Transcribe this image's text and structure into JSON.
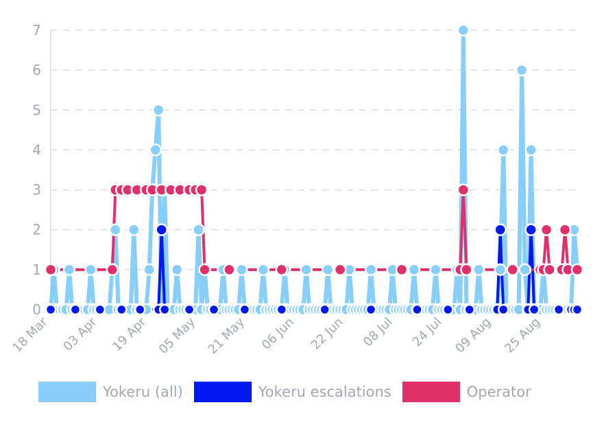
{
  "chart_data": {
    "type": "line",
    "y_ticks": [
      "0",
      "1",
      "2",
      "3",
      "4",
      "5",
      "6",
      "7"
    ],
    "ylim": [
      0,
      7
    ],
    "x_ticks": [
      "18 Mar",
      "03 Apr",
      "19 Apr",
      "05 May",
      "21 May",
      "06 Jun",
      "22 Jun",
      "08 Jul",
      "24 Jul",
      "09 Aug",
      "25 Aug"
    ],
    "x_start": "2024-03-18",
    "x_end": "2024-09-05",
    "grid": true,
    "legend_position": "bottom",
    "series": [
      {
        "name": "Yokeru (all)",
        "color": "#87cefa",
        "points": [
          [
            "2024-03-18",
            0
          ],
          [
            "2024-03-19",
            1
          ],
          [
            "2024-03-20",
            0
          ],
          [
            "2024-03-21",
            0
          ],
          [
            "2024-03-22",
            0
          ],
          [
            "2024-03-23",
            0
          ],
          [
            "2024-03-24",
            1
          ],
          [
            "2024-03-25",
            0
          ],
          [
            "2024-03-26",
            0
          ],
          [
            "2024-03-27",
            0
          ],
          [
            "2024-03-28",
            0
          ],
          [
            "2024-03-29",
            0
          ],
          [
            "2024-03-30",
            0
          ],
          [
            "2024-03-31",
            1
          ],
          [
            "2024-04-01",
            0
          ],
          [
            "2024-04-02",
            0
          ],
          [
            "2024-04-03",
            0
          ],
          [
            "2024-04-04",
            0
          ],
          [
            "2024-04-05",
            0
          ],
          [
            "2024-04-06",
            0
          ],
          [
            "2024-04-07",
            1
          ],
          [
            "2024-04-08",
            2
          ],
          [
            "2024-04-09",
            0
          ],
          [
            "2024-04-10",
            0
          ],
          [
            "2024-04-11",
            0
          ],
          [
            "2024-04-12",
            0
          ],
          [
            "2024-04-13",
            0
          ],
          [
            "2024-04-14",
            2
          ],
          [
            "2024-04-15",
            0
          ],
          [
            "2024-04-16",
            0
          ],
          [
            "2024-04-17",
            0
          ],
          [
            "2024-04-18",
            0
          ],
          [
            "2024-04-19",
            1
          ],
          [
            "2024-04-20",
            3
          ],
          [
            "2024-04-21",
            4
          ],
          [
            "2024-04-22",
            5
          ],
          [
            "2024-04-23",
            0
          ],
          [
            "2024-04-24",
            3
          ],
          [
            "2024-04-25",
            0
          ],
          [
            "2024-04-26",
            0
          ],
          [
            "2024-04-27",
            0
          ],
          [
            "2024-04-28",
            1
          ],
          [
            "2024-04-29",
            0
          ],
          [
            "2024-04-30",
            0
          ],
          [
            "2024-05-01",
            0
          ],
          [
            "2024-05-02",
            0
          ],
          [
            "2024-05-03",
            0
          ],
          [
            "2024-05-04",
            0
          ],
          [
            "2024-05-05",
            2
          ],
          [
            "2024-05-06",
            0
          ],
          [
            "2024-05-07",
            1
          ],
          [
            "2024-05-08",
            0
          ],
          [
            "2024-05-09",
            0
          ],
          [
            "2024-05-10",
            0
          ],
          [
            "2024-05-11",
            0
          ],
          [
            "2024-05-12",
            0
          ],
          [
            "2024-05-13",
            1
          ],
          [
            "2024-05-14",
            0
          ],
          [
            "2024-05-15",
            0
          ],
          [
            "2024-05-16",
            0
          ],
          [
            "2024-05-17",
            0
          ],
          [
            "2024-05-18",
            0
          ],
          [
            "2024-05-19",
            1
          ],
          [
            "2024-05-20",
            0
          ],
          [
            "2024-05-21",
            0
          ],
          [
            "2024-05-22",
            0
          ],
          [
            "2024-05-23",
            0
          ],
          [
            "2024-05-24",
            0
          ],
          [
            "2024-05-25",
            0
          ],
          [
            "2024-05-26",
            1
          ],
          [
            "2024-05-27",
            0
          ],
          [
            "2024-05-28",
            0
          ],
          [
            "2024-05-29",
            0
          ],
          [
            "2024-05-30",
            0
          ],
          [
            "2024-05-31",
            0
          ],
          [
            "2024-06-01",
            0
          ],
          [
            "2024-06-02",
            1
          ],
          [
            "2024-06-03",
            0
          ],
          [
            "2024-06-04",
            0
          ],
          [
            "2024-06-05",
            0
          ],
          [
            "2024-06-06",
            0
          ],
          [
            "2024-06-07",
            0
          ],
          [
            "2024-06-08",
            0
          ],
          [
            "2024-06-09",
            1
          ],
          [
            "2024-06-10",
            0
          ],
          [
            "2024-06-11",
            0
          ],
          [
            "2024-06-12",
            0
          ],
          [
            "2024-06-13",
            0
          ],
          [
            "2024-06-14",
            0
          ],
          [
            "2024-06-15",
            0
          ],
          [
            "2024-06-16",
            1
          ],
          [
            "2024-06-17",
            0
          ],
          [
            "2024-06-18",
            0
          ],
          [
            "2024-06-19",
            0
          ],
          [
            "2024-06-20",
            0
          ],
          [
            "2024-06-21",
            0
          ],
          [
            "2024-06-22",
            0
          ],
          [
            "2024-06-23",
            1
          ],
          [
            "2024-06-24",
            0
          ],
          [
            "2024-06-25",
            0
          ],
          [
            "2024-06-26",
            0
          ],
          [
            "2024-06-27",
            0
          ],
          [
            "2024-06-28",
            0
          ],
          [
            "2024-06-29",
            0
          ],
          [
            "2024-06-30",
            1
          ],
          [
            "2024-07-01",
            0
          ],
          [
            "2024-07-02",
            0
          ],
          [
            "2024-07-03",
            0
          ],
          [
            "2024-07-04",
            0
          ],
          [
            "2024-07-05",
            0
          ],
          [
            "2024-07-06",
            0
          ],
          [
            "2024-07-07",
            1
          ],
          [
            "2024-07-08",
            0
          ],
          [
            "2024-07-09",
            0
          ],
          [
            "2024-07-10",
            0
          ],
          [
            "2024-07-11",
            0
          ],
          [
            "2024-07-12",
            0
          ],
          [
            "2024-07-13",
            0
          ],
          [
            "2024-07-14",
            1
          ],
          [
            "2024-07-15",
            0
          ],
          [
            "2024-07-16",
            0
          ],
          [
            "2024-07-17",
            0
          ],
          [
            "2024-07-18",
            0
          ],
          [
            "2024-07-19",
            0
          ],
          [
            "2024-07-20",
            0
          ],
          [
            "2024-07-21",
            1
          ],
          [
            "2024-07-22",
            0
          ],
          [
            "2024-07-23",
            0
          ],
          [
            "2024-07-24",
            0
          ],
          [
            "2024-07-25",
            0
          ],
          [
            "2024-07-26",
            0
          ],
          [
            "2024-07-27",
            0
          ],
          [
            "2024-07-28",
            1
          ],
          [
            "2024-07-29",
            0
          ],
          [
            "2024-07-30",
            7
          ],
          [
            "2024-07-31",
            0
          ],
          [
            "2024-08-01",
            0
          ],
          [
            "2024-08-02",
            0
          ],
          [
            "2024-08-03",
            0
          ],
          [
            "2024-08-04",
            1
          ],
          [
            "2024-08-05",
            0
          ],
          [
            "2024-08-06",
            0
          ],
          [
            "2024-08-07",
            0
          ],
          [
            "2024-08-08",
            0
          ],
          [
            "2024-08-09",
            0
          ],
          [
            "2024-08-10",
            0
          ],
          [
            "2024-08-11",
            1
          ],
          [
            "2024-08-12",
            4
          ],
          [
            "2024-08-13",
            0
          ],
          [
            "2024-08-14",
            0
          ],
          [
            "2024-08-15",
            0
          ],
          [
            "2024-08-16",
            0
          ],
          [
            "2024-08-17",
            0
          ],
          [
            "2024-08-18",
            6
          ],
          [
            "2024-08-19",
            1
          ],
          [
            "2024-08-20",
            0
          ],
          [
            "2024-08-21",
            4
          ],
          [
            "2024-08-22",
            0
          ],
          [
            "2024-08-23",
            0
          ],
          [
            "2024-08-24",
            0
          ],
          [
            "2024-08-25",
            1
          ],
          [
            "2024-08-26",
            0
          ],
          [
            "2024-08-27",
            0
          ],
          [
            "2024-08-28",
            0
          ],
          [
            "2024-08-29",
            0
          ],
          [
            "2024-08-30",
            0
          ],
          [
            "2024-08-31",
            0
          ],
          [
            "2024-09-01",
            0
          ],
          [
            "2024-09-02",
            0
          ],
          [
            "2024-09-03",
            0
          ],
          [
            "2024-09-04",
            2
          ],
          [
            "2024-09-05",
            1
          ]
        ]
      },
      {
        "name": "Yokeru escalations",
        "color": "#0019f0",
        "points": [
          [
            "2024-03-18",
            0
          ],
          [
            "2024-03-26",
            0
          ],
          [
            "2024-04-03",
            0
          ],
          [
            "2024-04-10",
            0
          ],
          [
            "2024-04-16",
            0
          ],
          [
            "2024-04-22",
            0
          ],
          [
            "2024-04-23",
            2
          ],
          [
            "2024-04-24",
            0
          ],
          [
            "2024-05-02",
            0
          ],
          [
            "2024-05-10",
            0
          ],
          [
            "2024-05-20",
            0
          ],
          [
            "2024-06-01",
            0
          ],
          [
            "2024-06-15",
            0
          ],
          [
            "2024-06-30",
            0
          ],
          [
            "2024-07-15",
            0
          ],
          [
            "2024-07-25",
            0
          ],
          [
            "2024-08-01",
            0
          ],
          [
            "2024-08-10",
            0
          ],
          [
            "2024-08-11",
            2
          ],
          [
            "2024-08-12",
            0
          ],
          [
            "2024-08-20",
            0
          ],
          [
            "2024-08-21",
            2
          ],
          [
            "2024-08-22",
            0
          ],
          [
            "2024-08-30",
            0
          ],
          [
            "2024-09-03",
            0
          ],
          [
            "2024-09-04",
            0
          ],
          [
            "2024-09-05",
            0
          ]
        ]
      },
      {
        "name": "Operator",
        "color": "#e0306a",
        "points": [
          [
            "2024-03-18",
            1
          ],
          [
            "2024-04-07",
            1
          ],
          [
            "2024-04-08",
            3
          ],
          [
            "2024-04-10",
            3
          ],
          [
            "2024-04-12",
            3
          ],
          [
            "2024-04-15",
            3
          ],
          [
            "2024-04-18",
            3
          ],
          [
            "2024-04-20",
            3
          ],
          [
            "2024-04-23",
            3
          ],
          [
            "2024-04-26",
            3
          ],
          [
            "2024-04-29",
            3
          ],
          [
            "2024-05-02",
            3
          ],
          [
            "2024-05-04",
            3
          ],
          [
            "2024-05-06",
            3
          ],
          [
            "2024-05-07",
            1
          ],
          [
            "2024-05-15",
            1
          ],
          [
            "2024-06-01",
            1
          ],
          [
            "2024-06-20",
            1
          ],
          [
            "2024-07-10",
            1
          ],
          [
            "2024-07-29",
            1
          ],
          [
            "2024-07-30",
            3
          ],
          [
            "2024-07-31",
            1
          ],
          [
            "2024-08-15",
            1
          ],
          [
            "2024-08-24",
            1
          ],
          [
            "2024-08-25",
            1
          ],
          [
            "2024-08-26",
            2
          ],
          [
            "2024-08-27",
            1
          ],
          [
            "2024-08-31",
            1
          ],
          [
            "2024-09-01",
            2
          ],
          [
            "2024-09-02",
            1
          ],
          [
            "2024-09-05",
            1
          ]
        ]
      }
    ]
  }
}
